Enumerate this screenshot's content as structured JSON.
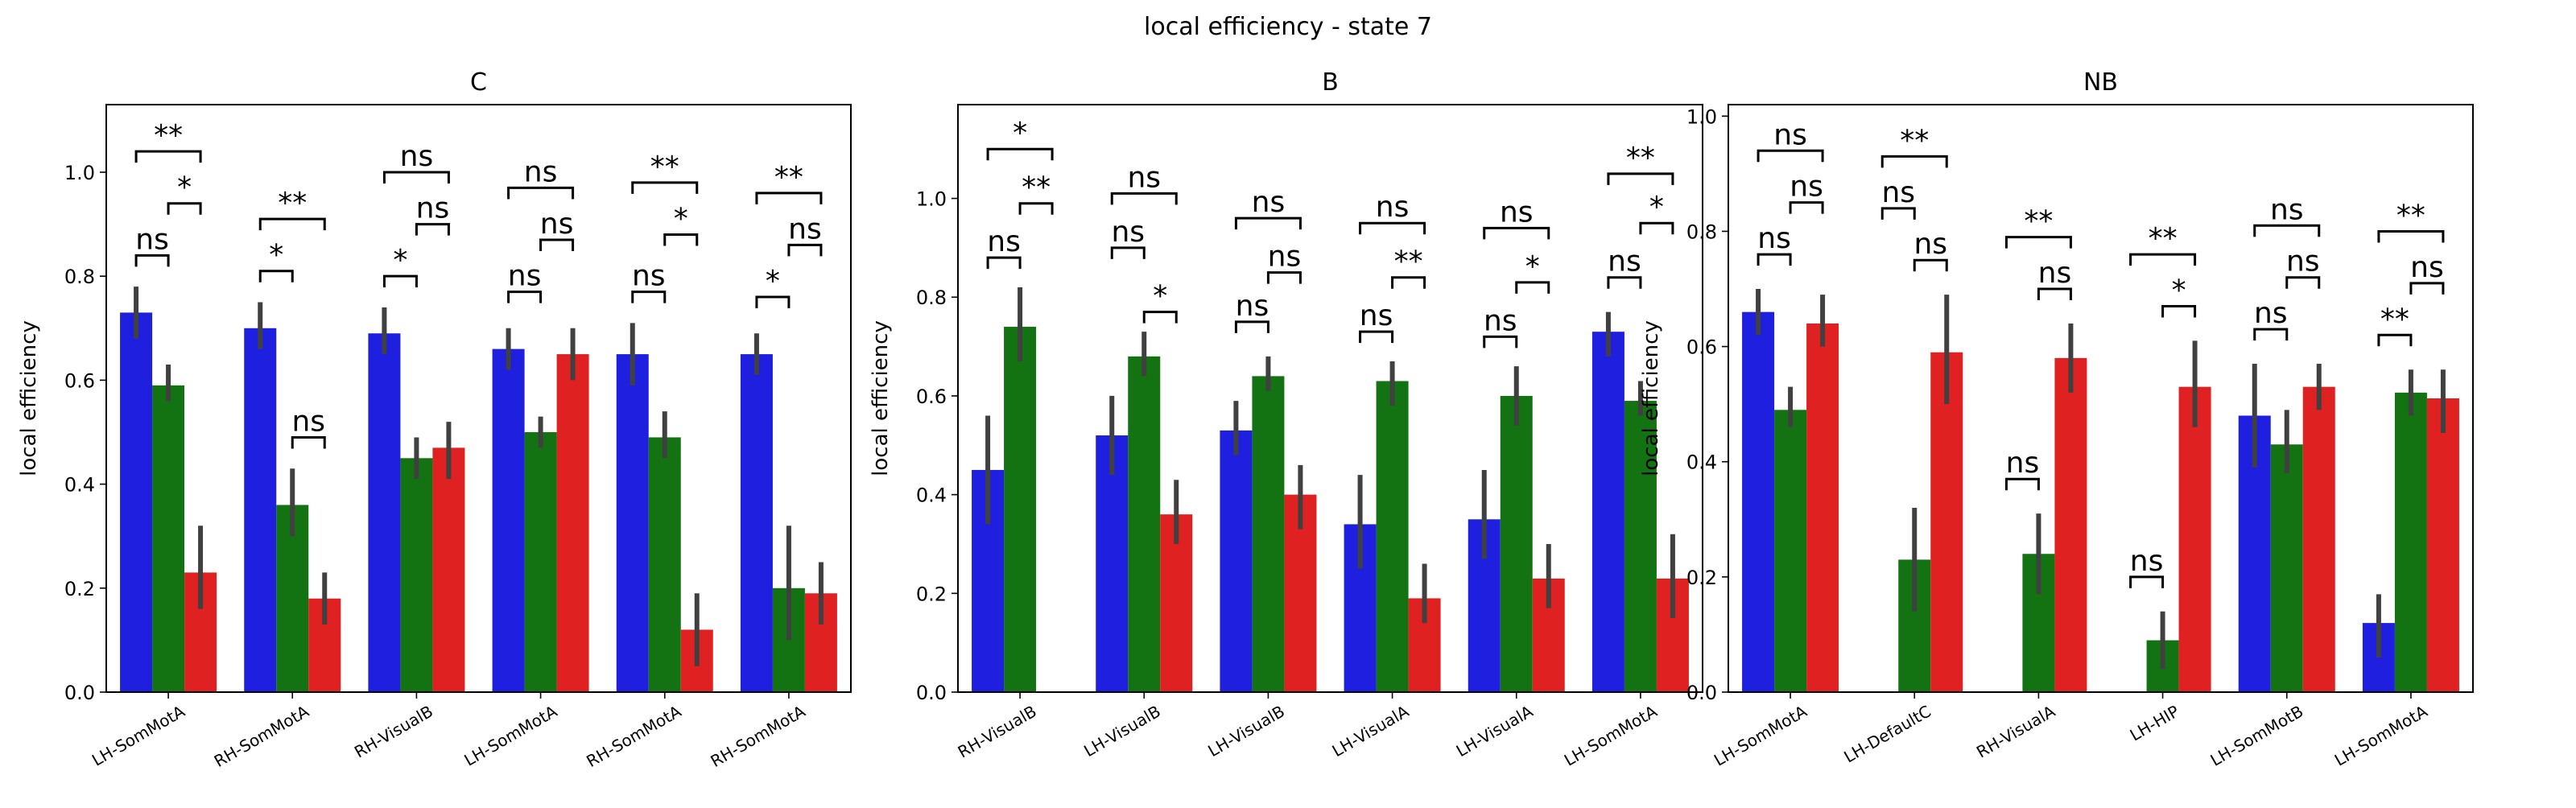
{
  "figure": {
    "title": "local efficiency - state 7"
  },
  "colors": {
    "series_1": "#1f1fe0",
    "series_2": "#137313",
    "series_3": "#e02121",
    "error_bar": "#404040"
  },
  "chart_data": [
    {
      "type": "bar",
      "title": "C",
      "ylabel": "local efficiency",
      "ylim": [
        0,
        1.13
      ],
      "yticks": [
        "0.0",
        "0.2",
        "0.4",
        "0.6",
        "0.8",
        "1.0"
      ],
      "categories": [
        "LH-SomMotA",
        "RH-SomMotA",
        "RH-VisualB",
        "LH-SomMotA",
        "RH-SomMotA",
        "RH-SomMotA"
      ],
      "series": [
        {
          "values": [
            0.73,
            0.7,
            0.69,
            0.66,
            0.65,
            0.65
          ],
          "err_low": [
            0.68,
            0.66,
            0.65,
            0.62,
            0.59,
            0.61
          ],
          "err_high": [
            0.78,
            0.75,
            0.74,
            0.7,
            0.71,
            0.69
          ]
        },
        {
          "values": [
            0.59,
            0.36,
            0.45,
            0.5,
            0.49,
            0.2
          ],
          "err_low": [
            0.56,
            0.3,
            0.41,
            0.47,
            0.45,
            0.1
          ],
          "err_high": [
            0.63,
            0.43,
            0.49,
            0.53,
            0.54,
            0.32
          ]
        },
        {
          "values": [
            0.23,
            0.18,
            0.47,
            0.65,
            0.12,
            0.19
          ],
          "err_low": [
            0.16,
            0.13,
            0.41,
            0.6,
            0.05,
            0.13
          ],
          "err_high": [
            0.32,
            0.23,
            0.52,
            0.7,
            0.19,
            0.25
          ]
        }
      ],
      "annotations": [
        {
          "cat": 0,
          "a": 0,
          "b": 1,
          "y": 0.84,
          "label": "ns"
        },
        {
          "cat": 0,
          "a": 1,
          "b": 2,
          "y": 0.94,
          "label": "*"
        },
        {
          "cat": 0,
          "a": 0,
          "b": 2,
          "y": 1.04,
          "label": "**"
        },
        {
          "cat": 1,
          "a": 0,
          "b": 1,
          "y": 0.81,
          "label": "*"
        },
        {
          "cat": 1,
          "a": 1,
          "b": 2,
          "y": 0.49,
          "label": "ns"
        },
        {
          "cat": 1,
          "a": 0,
          "b": 2,
          "y": 0.91,
          "label": "**"
        },
        {
          "cat": 2,
          "a": 0,
          "b": 1,
          "y": 0.8,
          "label": "*"
        },
        {
          "cat": 2,
          "a": 1,
          "b": 2,
          "y": 0.9,
          "label": "ns"
        },
        {
          "cat": 2,
          "a": 0,
          "b": 2,
          "y": 1.0,
          "label": "ns"
        },
        {
          "cat": 3,
          "a": 0,
          "b": 1,
          "y": 0.77,
          "label": "ns"
        },
        {
          "cat": 3,
          "a": 1,
          "b": 2,
          "y": 0.87,
          "label": "ns"
        },
        {
          "cat": 3,
          "a": 0,
          "b": 2,
          "y": 0.97,
          "label": "ns"
        },
        {
          "cat": 4,
          "a": 0,
          "b": 1,
          "y": 0.77,
          "label": "ns"
        },
        {
          "cat": 4,
          "a": 1,
          "b": 2,
          "y": 0.88,
          "label": "*"
        },
        {
          "cat": 4,
          "a": 0,
          "b": 2,
          "y": 0.98,
          "label": "**"
        },
        {
          "cat": 5,
          "a": 0,
          "b": 1,
          "y": 0.76,
          "label": "*"
        },
        {
          "cat": 5,
          "a": 1,
          "b": 2,
          "y": 0.86,
          "label": "ns"
        },
        {
          "cat": 5,
          "a": 0,
          "b": 2,
          "y": 0.96,
          "label": "**"
        }
      ]
    },
    {
      "type": "bar",
      "title": "B",
      "ylabel": "local efficiency",
      "ylim": [
        0,
        1.19
      ],
      "yticks": [
        "0.0",
        "0.2",
        "0.4",
        "0.6",
        "0.8",
        "1.0"
      ],
      "categories": [
        "RH-VisualB",
        "LH-VisualB",
        "LH-VisualB",
        "LH-VisualA",
        "LH-VisualA",
        "LH-SomMotA"
      ],
      "series": [
        {
          "values": [
            0.45,
            0.52,
            0.53,
            0.34,
            0.35,
            0.73
          ],
          "err_low": [
            0.34,
            0.44,
            0.48,
            0.25,
            0.27,
            0.68
          ],
          "err_high": [
            0.56,
            0.6,
            0.59,
            0.44,
            0.45,
            0.77
          ]
        },
        {
          "values": [
            0.74,
            0.68,
            0.64,
            0.63,
            0.6,
            0.59
          ],
          "err_low": [
            0.67,
            0.64,
            0.61,
            0.58,
            0.54,
            0.56
          ],
          "err_high": [
            0.82,
            0.73,
            0.68,
            0.67,
            0.66,
            0.63
          ]
        },
        {
          "values": [
            null,
            0.36,
            0.4,
            0.19,
            0.23,
            0.23
          ],
          "err_low": [
            null,
            0.3,
            0.33,
            0.14,
            0.17,
            0.15
          ],
          "err_high": [
            null,
            0.43,
            0.46,
            0.26,
            0.3,
            0.32
          ]
        }
      ],
      "annotations": [
        {
          "cat": 0,
          "a": 0,
          "b": 1,
          "y": 0.88,
          "label": "ns"
        },
        {
          "cat": 0,
          "a": 1,
          "b": 2,
          "y": 0.99,
          "label": "**"
        },
        {
          "cat": 0,
          "a": 0,
          "b": 2,
          "y": 1.1,
          "label": "*"
        },
        {
          "cat": 1,
          "a": 0,
          "b": 1,
          "y": 0.9,
          "label": "ns"
        },
        {
          "cat": 1,
          "a": 1,
          "b": 2,
          "y": 0.77,
          "label": "*"
        },
        {
          "cat": 1,
          "a": 0,
          "b": 2,
          "y": 1.01,
          "label": "ns"
        },
        {
          "cat": 2,
          "a": 0,
          "b": 1,
          "y": 0.75,
          "label": "ns"
        },
        {
          "cat": 2,
          "a": 1,
          "b": 2,
          "y": 0.85,
          "label": "ns"
        },
        {
          "cat": 2,
          "a": 0,
          "b": 2,
          "y": 0.96,
          "label": "ns"
        },
        {
          "cat": 3,
          "a": 0,
          "b": 1,
          "y": 0.73,
          "label": "ns"
        },
        {
          "cat": 3,
          "a": 1,
          "b": 2,
          "y": 0.84,
          "label": "**"
        },
        {
          "cat": 3,
          "a": 0,
          "b": 2,
          "y": 0.95,
          "label": "ns"
        },
        {
          "cat": 4,
          "a": 0,
          "b": 1,
          "y": 0.72,
          "label": "ns"
        },
        {
          "cat": 4,
          "a": 1,
          "b": 2,
          "y": 0.83,
          "label": "*"
        },
        {
          "cat": 4,
          "a": 0,
          "b": 2,
          "y": 0.94,
          "label": "ns"
        },
        {
          "cat": 5,
          "a": 0,
          "b": 1,
          "y": 0.84,
          "label": "ns"
        },
        {
          "cat": 5,
          "a": 1,
          "b": 2,
          "y": 0.95,
          "label": "*"
        },
        {
          "cat": 5,
          "a": 0,
          "b": 2,
          "y": 1.05,
          "label": "**"
        }
      ]
    },
    {
      "type": "bar",
      "title": "NB",
      "ylabel": "local efficiency",
      "ylim": [
        0,
        1.02
      ],
      "yticks": [
        "0.0",
        "0.2",
        "0.4",
        "0.6",
        "0.8",
        "1.0"
      ],
      "categories": [
        "LH-SomMotA",
        "LH-DefaultC",
        "RH-VisualA",
        "LH-HIP",
        "LH-SomMotB",
        "LH-SomMotA"
      ],
      "series": [
        {
          "values": [
            0.66,
            null,
            null,
            null,
            0.48,
            0.12
          ],
          "err_low": [
            0.62,
            null,
            null,
            null,
            0.39,
            0.06
          ],
          "err_high": [
            0.7,
            null,
            null,
            null,
            0.57,
            0.17
          ]
        },
        {
          "values": [
            0.49,
            0.23,
            0.24,
            0.09,
            0.43,
            0.52
          ],
          "err_low": [
            0.46,
            0.14,
            0.17,
            0.04,
            0.38,
            0.48
          ],
          "err_high": [
            0.53,
            0.32,
            0.31,
            0.14,
            0.49,
            0.56
          ]
        },
        {
          "values": [
            0.64,
            0.59,
            0.58,
            0.53,
            0.53,
            0.51
          ],
          "err_low": [
            0.6,
            0.5,
            0.52,
            0.46,
            0.49,
            0.45
          ],
          "err_high": [
            0.69,
            0.69,
            0.64,
            0.61,
            0.57,
            0.56
          ]
        }
      ],
      "annotations": [
        {
          "cat": 0,
          "a": 0,
          "b": 1,
          "y": 0.76,
          "label": "ns"
        },
        {
          "cat": 0,
          "a": 1,
          "b": 2,
          "y": 0.85,
          "label": "ns"
        },
        {
          "cat": 0,
          "a": 0,
          "b": 2,
          "y": 0.94,
          "label": "ns"
        },
        {
          "cat": 1,
          "a": 0,
          "b": 1,
          "y": 0.84,
          "label": "ns"
        },
        {
          "cat": 1,
          "a": 1,
          "b": 2,
          "y": 0.75,
          "label": "ns"
        },
        {
          "cat": 1,
          "a": 0,
          "b": 2,
          "y": 0.93,
          "label": "**"
        },
        {
          "cat": 2,
          "a": 0,
          "b": 1,
          "y": 0.37,
          "label": "ns"
        },
        {
          "cat": 2,
          "a": 1,
          "b": 2,
          "y": 0.7,
          "label": "ns"
        },
        {
          "cat": 2,
          "a": 0,
          "b": 2,
          "y": 0.79,
          "label": "**"
        },
        {
          "cat": 3,
          "a": 0,
          "b": 1,
          "y": 0.2,
          "label": "ns"
        },
        {
          "cat": 3,
          "a": 1,
          "b": 2,
          "y": 0.67,
          "label": "*"
        },
        {
          "cat": 3,
          "a": 0,
          "b": 2,
          "y": 0.76,
          "label": "**"
        },
        {
          "cat": 4,
          "a": 0,
          "b": 1,
          "y": 0.63,
          "label": "ns"
        },
        {
          "cat": 4,
          "a": 1,
          "b": 2,
          "y": 0.72,
          "label": "ns"
        },
        {
          "cat": 4,
          "a": 0,
          "b": 2,
          "y": 0.81,
          "label": "ns"
        },
        {
          "cat": 5,
          "a": 0,
          "b": 1,
          "y": 0.62,
          "label": "**"
        },
        {
          "cat": 5,
          "a": 1,
          "b": 2,
          "y": 0.71,
          "label": "ns"
        },
        {
          "cat": 5,
          "a": 0,
          "b": 2,
          "y": 0.8,
          "label": "**"
        }
      ]
    }
  ]
}
